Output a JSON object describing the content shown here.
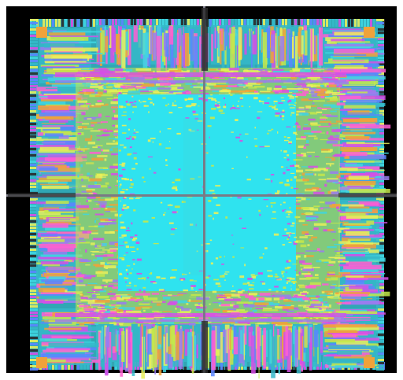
{
  "image": {
    "subject": "chip-layout",
    "colors": {
      "frame": "#ffffff",
      "background": "#000000",
      "core": "#2fe3ef",
      "cyan": "#3fd6e0",
      "teal": "#35b9c9",
      "yellow": "#e9f05a",
      "lime": "#c6e84a",
      "orange": "#f0a23a",
      "magenta": "#d64fe6",
      "pink": "#ff5fd1",
      "violet": "#9a7cf0",
      "blue": "#5a86ff",
      "dark": "#2a2a2a",
      "line": "#7a7a86",
      "gray": "#8e8e96"
    }
  }
}
